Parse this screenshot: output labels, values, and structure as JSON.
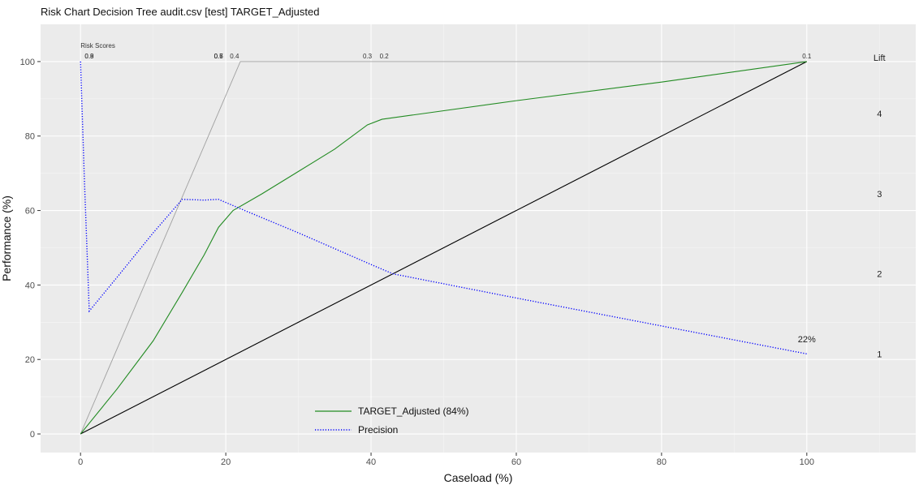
{
  "chart_data": {
    "type": "line",
    "title": "Risk Chart Decision Tree audit.csv [test] TARGET_Adjusted",
    "xlabel": "Caseload (%)",
    "ylabel": "Performance (%)",
    "xlim": [
      -5.5,
      115
    ],
    "ylim": [
      -5,
      110
    ],
    "x_ticks": [
      0,
      20,
      40,
      60,
      80,
      100
    ],
    "y_ticks": [
      0,
      20,
      40,
      60,
      80,
      100
    ],
    "grid": true,
    "series": [
      {
        "name": "TARGET_Adjusted (84%)",
        "color": "#228b22",
        "style": "solid",
        "x": [
          0,
          5,
          10,
          14,
          17,
          19,
          21,
          25,
          30,
          35,
          39.5,
          41.5,
          60,
          80,
          100
        ],
        "y": [
          0,
          12,
          25,
          38,
          48,
          55.5,
          60,
          64.5,
          70.5,
          76.5,
          83,
          84.5,
          89.5,
          94.5,
          100
        ]
      },
      {
        "name": "Precision",
        "color": "#0000ff",
        "style": "dotted",
        "x": [
          0,
          0.5,
          1.2,
          5,
          10,
          14,
          17,
          19,
          22,
          30,
          40,
          43,
          60,
          80,
          100
        ],
        "y": [
          100,
          70,
          33,
          42,
          54,
          63,
          62.8,
          63,
          60.5,
          54,
          45.5,
          43,
          36.5,
          29,
          21.5
        ]
      },
      {
        "color": "#000000",
        "style": "solid",
        "x": [
          0,
          100
        ],
        "y": [
          0,
          100
        ]
      },
      {
        "color": "#a0a0a0",
        "style": "solid",
        "x": [
          0,
          22,
          100
        ],
        "y": [
          0,
          100,
          100
        ]
      }
    ],
    "risk_scores": {
      "label": "Risk Scores",
      "items": [
        {
          "x": 1.2,
          "text": "0.9"
        },
        {
          "x": 1.2,
          "text": "0.8"
        },
        {
          "x": 19,
          "text": "0.7"
        },
        {
          "x": 19,
          "text": "0.6"
        },
        {
          "x": 19,
          "text": "0.5"
        },
        {
          "x": 21.2,
          "text": "0.4"
        },
        {
          "x": 39.5,
          "text": "0.3"
        },
        {
          "x": 41.8,
          "text": "0.2"
        },
        {
          "x": 100,
          "text": "0.1"
        }
      ]
    },
    "lift": {
      "label": "Lift",
      "ticks": [
        {
          "y": 86,
          "text": "4"
        },
        {
          "y": 64.5,
          "text": "3"
        },
        {
          "y": 43,
          "text": "2"
        },
        {
          "y": 21.5,
          "text": "1"
        }
      ]
    },
    "annotation": {
      "x": 100,
      "y": 25.5,
      "text": "22%"
    },
    "legend": {
      "position": "bottom-left",
      "entries": [
        {
          "label": "TARGET_Adjusted (84%)",
          "color": "#228b22",
          "style": "solid"
        },
        {
          "label": "Precision",
          "color": "#0000ff",
          "style": "dotted"
        }
      ]
    }
  }
}
